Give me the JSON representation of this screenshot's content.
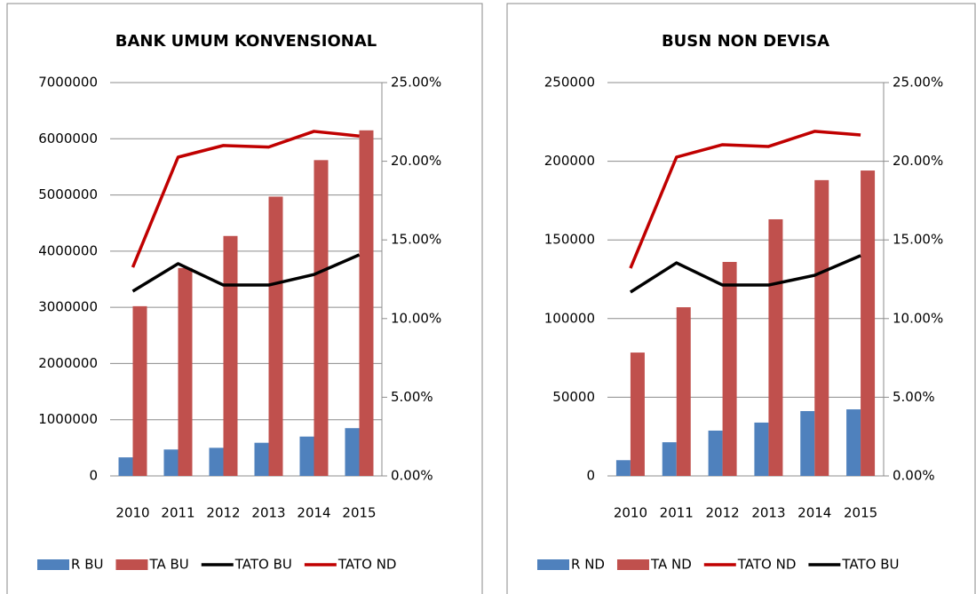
{
  "chart_data": [
    {
      "type": "bar",
      "title": "BANK UMUM KONVENSIONAL",
      "categories": [
        "2010",
        "2011",
        "2012",
        "2013",
        "2014",
        "2015"
      ],
      "series": [
        {
          "name": "R BU",
          "type": "bar",
          "color": "#4f81bd",
          "values": [
            330000,
            470000,
            500000,
            590000,
            700000,
            850000
          ]
        },
        {
          "name": "TA BU",
          "type": "bar",
          "color": "#c0504d",
          "values": [
            3020000,
            3700000,
            4270000,
            4970000,
            5620000,
            6150000
          ]
        },
        {
          "name": "TATO BU",
          "type": "line",
          "axis": "y2",
          "color": "#000000",
          "values": [
            11.74,
            13.49,
            12.13,
            12.13,
            12.8,
            14.05
          ]
        },
        {
          "name": "TATO ND",
          "type": "line",
          "axis": "y2",
          "color": "#c00000",
          "values": [
            13.26,
            20.26,
            21.0,
            20.9,
            21.9,
            21.6
          ]
        }
      ],
      "ylim": [
        0,
        7000000
      ],
      "yticks": [
        0,
        1000000,
        2000000,
        3000000,
        4000000,
        5000000,
        6000000,
        7000000
      ],
      "y2lim": [
        0,
        25
      ],
      "y2ticks": [
        {
          "value": 0,
          "label": "0.00%"
        },
        {
          "value": 5,
          "label": "5.00%"
        },
        {
          "value": 10,
          "label": "10.00%"
        },
        {
          "value": 15,
          "label": "15.00%"
        },
        {
          "value": 20,
          "label": "20.00%"
        },
        {
          "value": 25,
          "label": "25.00%"
        }
      ],
      "grid": true,
      "legend": "bottom"
    },
    {
      "type": "bar",
      "title": "BUSN NON DEVISA",
      "categories": [
        "2010",
        "2011",
        "2012",
        "2013",
        "2014",
        "2015"
      ],
      "series": [
        {
          "name": "R ND",
          "type": "bar",
          "color": "#4f81bd",
          "values": [
            10000,
            21400,
            28800,
            33900,
            41200,
            42300
          ]
        },
        {
          "name": "TA ND",
          "type": "bar",
          "color": "#c0504d",
          "values": [
            78400,
            107200,
            136000,
            163100,
            188000,
            194100
          ]
        },
        {
          "name": "TATO ND",
          "type": "line",
          "axis": "y2",
          "color": "#c00000",
          "values": [
            13.2,
            20.26,
            21.05,
            20.94,
            21.9,
            21.67
          ]
        },
        {
          "name": "TATO BU",
          "type": "line",
          "axis": "y2",
          "color": "#000000",
          "values": [
            11.68,
            13.54,
            12.13,
            12.13,
            12.75,
            14.0
          ]
        }
      ],
      "ylim": [
        0,
        250000
      ],
      "yticks": [
        0,
        50000,
        100000,
        150000,
        200000,
        250000
      ],
      "y2lim": [
        0,
        25
      ],
      "y2ticks": [
        {
          "value": 0,
          "label": "0.00%"
        },
        {
          "value": 5,
          "label": "5.00%"
        },
        {
          "value": 10,
          "label": "10.00%"
        },
        {
          "value": 15,
          "label": "15.00%"
        },
        {
          "value": 20,
          "label": "20.00%"
        },
        {
          "value": 25,
          "label": "25.00%"
        }
      ],
      "grid": true,
      "legend": "bottom"
    }
  ]
}
